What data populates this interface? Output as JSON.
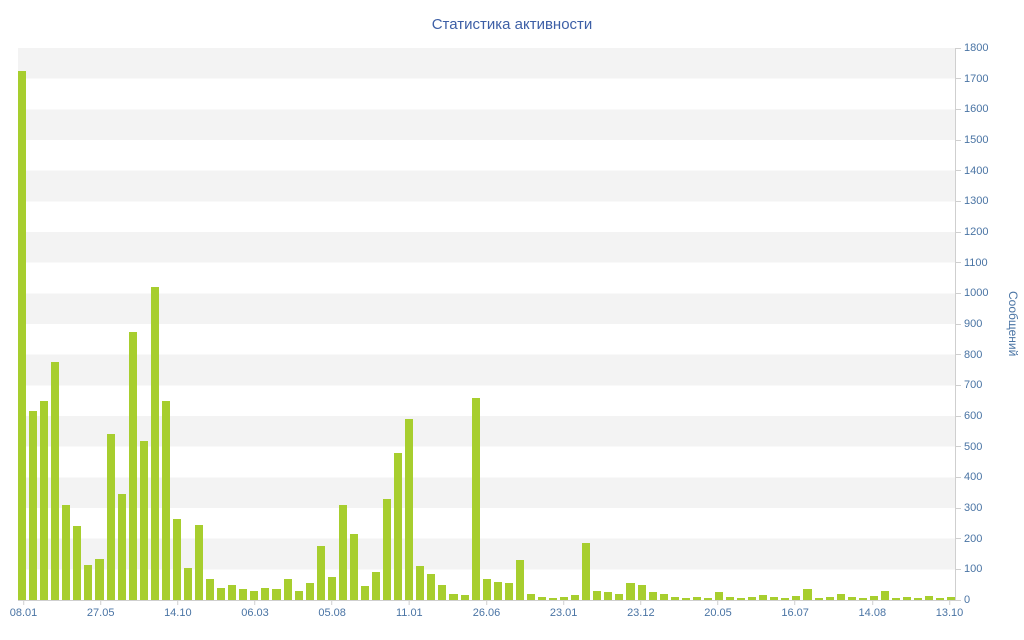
{
  "chart": {
    "title": "Статистика активности",
    "ylabel": "Сообщений"
  },
  "chart_data": {
    "type": "bar",
    "title": "Статистика активности",
    "xlabel": "",
    "ylabel": "Сообщений",
    "ylim": [
      0,
      1800
    ],
    "y_ticks": [
      0,
      100,
      200,
      300,
      400,
      500,
      600,
      700,
      800,
      900,
      1000,
      1100,
      1200,
      1300,
      1400,
      1500,
      1600,
      1700,
      1800
    ],
    "x_tick_labels": [
      "08.01",
      "27.05",
      "14.10",
      "06.03",
      "05.08",
      "11.01",
      "26.06",
      "23.01",
      "23.12",
      "20.05",
      "16.07",
      "14.08",
      "13.10"
    ],
    "x_tick_indices": [
      0,
      7,
      14,
      21,
      28,
      35,
      42,
      49,
      56,
      63,
      70,
      77,
      84
    ],
    "values": [
      1725,
      615,
      650,
      775,
      310,
      240,
      115,
      135,
      540,
      345,
      875,
      520,
      1020,
      650,
      265,
      105,
      245,
      70,
      40,
      50,
      35,
      30,
      40,
      35,
      70,
      30,
      55,
      175,
      75,
      310,
      215,
      45,
      90,
      330,
      480,
      590,
      110,
      85,
      50,
      20,
      15,
      660,
      70,
      60,
      55,
      130,
      20,
      10,
      5,
      10,
      15,
      185,
      30,
      25,
      20,
      55,
      50,
      25,
      20,
      10,
      5,
      10,
      5,
      25,
      10,
      5,
      10,
      15,
      10,
      8,
      12,
      35,
      8,
      10,
      20,
      10,
      5,
      12,
      30,
      5,
      10,
      5,
      12,
      8,
      10
    ],
    "bar_color": "#a7ce2e",
    "stripe_color": "#f3f3f3",
    "axis_line_color": "#cfcfcf",
    "axis_text_color": "#4a74a4",
    "title_color": "#3d5fa6",
    "grid": "horizontal striped bands every 100 units",
    "legend": "none"
  }
}
